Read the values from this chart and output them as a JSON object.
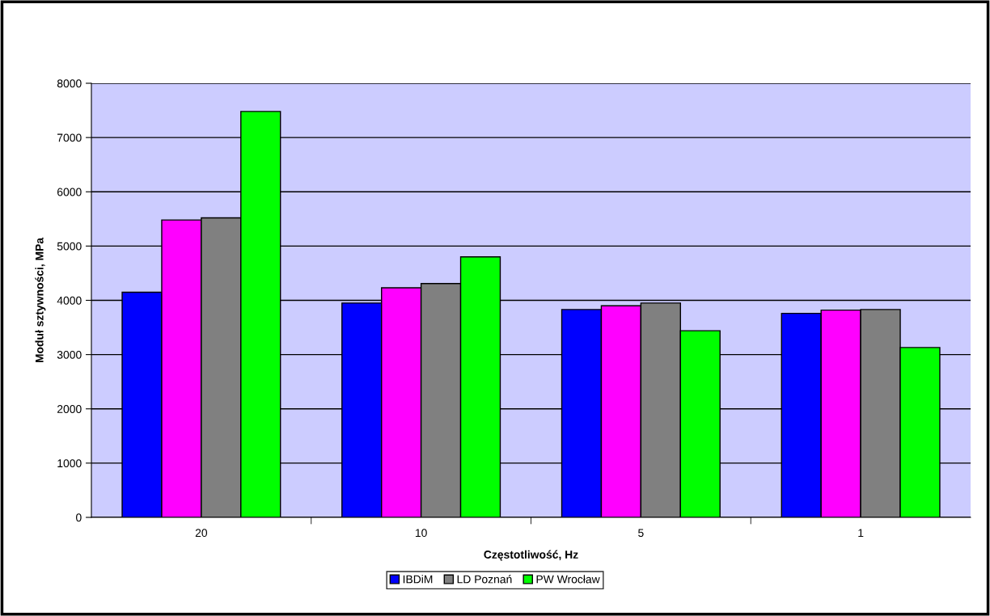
{
  "chart_data": {
    "type": "bar",
    "xlabel": "Częstotliwość, Hz",
    "ylabel": "Moduł sztywności, MPa",
    "categories": [
      "20",
      "10",
      "5",
      "1"
    ],
    "series": [
      {
        "name": "IBDiM",
        "color": "#0000ff",
        "values": [
          4150,
          3950,
          3830,
          3760
        ]
      },
      {
        "color": "#ff00ff",
        "values": [
          5480,
          4230,
          3900,
          3820
        ]
      },
      {
        "name": "LD Poznań",
        "color": "#808080",
        "values": [
          5520,
          4310,
          3950,
          3830
        ]
      },
      {
        "name": "PW Wrocław",
        "color": "#00ff00",
        "values": [
          7480,
          4800,
          3440,
          3130
        ]
      }
    ],
    "ylim": [
      0,
      8000
    ],
    "yticks": [
      0,
      1000,
      2000,
      3000,
      4000,
      5000,
      6000,
      7000,
      8000
    ],
    "grid": "y",
    "legend": "bottom"
  }
}
